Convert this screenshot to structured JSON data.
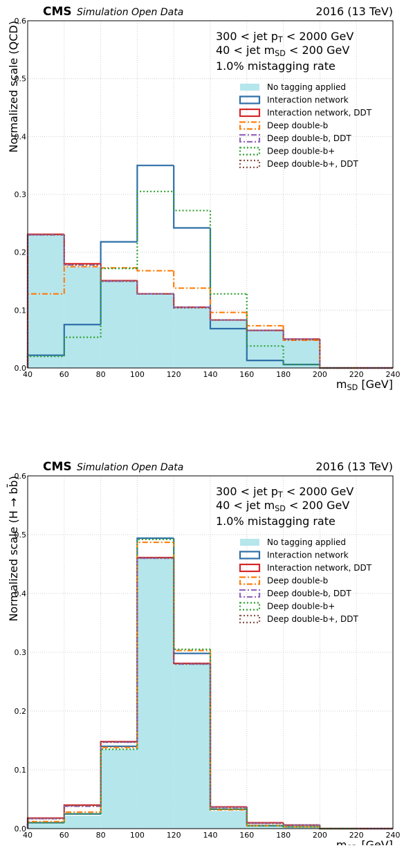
{
  "chart_data": [
    {
      "type": "histogram",
      "cms": "CMS",
      "status": "Simulation Open Data",
      "lumi": "2016 (13 TeV)",
      "annotations": [
        {
          "text": "300 <  jet p",
          "sub": "T",
          "after": "  < 2000 GeV"
        },
        {
          "text": "40 <  jet m",
          "sub": "SD",
          "after": "  < 200 GeV"
        },
        {
          "text": "1.0% mistagging rate"
        }
      ],
      "x_label": {
        "text": "m",
        "sub": "SD",
        "after": " [GeV]"
      },
      "y_label": "Normalized scale (QCD)",
      "bins": [
        40,
        60,
        80,
        100,
        120,
        140,
        160,
        180,
        200,
        220,
        240
      ],
      "xlim": [
        40,
        240
      ],
      "xticks": [
        40,
        60,
        80,
        100,
        120,
        140,
        160,
        180,
        200,
        220,
        240
      ],
      "ylim": [
        0,
        0.6
      ],
      "yticks": [
        {
          "value": 0,
          "label": "0.0"
        },
        0.1,
        0.2,
        0.3,
        0.4,
        0.5,
        0.6
      ],
      "grid": true,
      "legend": "upper right",
      "series": [
        {
          "name": "No tagging applied",
          "color": "#b5e6ec",
          "fill": true,
          "values": [
            0.23,
            0.175,
            0.15,
            0.128,
            0.105,
            0.083,
            0.065,
            0.05,
            0,
            0
          ]
        },
        {
          "name": "Interaction network",
          "color": "#2e6fa8",
          "linestyle": "solid",
          "values": [
            0.022,
            0.075,
            0.218,
            0.35,
            0.242,
            0.068,
            0.013,
            0.006,
            0,
            0
          ]
        },
        {
          "name": "Interaction network, DDT",
          "color": "#d62728",
          "linestyle": "solid",
          "values": [
            0.231,
            0.18,
            0.151,
            0.128,
            0.105,
            0.083,
            0.065,
            0.05,
            0,
            0
          ]
        },
        {
          "name": "Deep double-b",
          "color": "#ff7f0e",
          "linestyle": "dashdot",
          "values": [
            0.128,
            0.175,
            0.173,
            0.168,
            0.138,
            0.096,
            0.073,
            0.048,
            0,
            0
          ]
        },
        {
          "name": "Deep double-b, DDT",
          "color": "#9467bd",
          "linestyle": "dashdot",
          "values": [
            0.23,
            0.178,
            0.15,
            0.128,
            0.105,
            0.083,
            0.065,
            0.05,
            0,
            0
          ]
        },
        {
          "name": "Deep double-b+",
          "color": "#2ca02c",
          "linestyle": "dotted",
          "values": [
            0.02,
            0.053,
            0.172,
            0.305,
            0.272,
            0.128,
            0.038,
            0.006,
            0,
            0
          ]
        },
        {
          "name": "Deep double-b+, DDT",
          "color": "#8c564b",
          "linestyle": "dotted",
          "values": [
            0.23,
            0.178,
            0.15,
            0.128,
            0.104,
            0.083,
            0.065,
            0.049,
            0,
            0
          ]
        }
      ]
    },
    {
      "type": "histogram",
      "cms": "CMS",
      "status": "Simulation Open Data",
      "lumi": "2016 (13 TeV)",
      "annotations": [
        {
          "text": "300 <  jet p",
          "sub": "T",
          "after": "  < 2000 GeV"
        },
        {
          "text": "40 <  jet m",
          "sub": "SD",
          "after": "  < 200 GeV"
        },
        {
          "text": "1.0% mistagging rate"
        }
      ],
      "x_label": {
        "text": "m",
        "sub": "SD",
        "after": " [GeV]"
      },
      "y_label": "Normalized scale (H → bb̄)",
      "bins": [
        40,
        60,
        80,
        100,
        120,
        140,
        160,
        180,
        200,
        220,
        240
      ],
      "xlim": [
        40,
        240
      ],
      "xticks": [
        40,
        60,
        80,
        100,
        120,
        140,
        160,
        180,
        200,
        220,
        240
      ],
      "ylim": [
        0,
        0.6
      ],
      "yticks": [
        {
          "value": 0,
          "label": "0.0"
        },
        0.1,
        0.2,
        0.3,
        0.4,
        0.5,
        0.6
      ],
      "grid": true,
      "legend": "upper right",
      "series": [
        {
          "name": "No tagging applied",
          "color": "#b5e6ec",
          "fill": true,
          "values": [
            0.008,
            0.022,
            0.135,
            0.46,
            0.28,
            0.03,
            0.005,
            0.002,
            0,
            0
          ]
        },
        {
          "name": "Interaction network",
          "color": "#2e6fa8",
          "linestyle": "solid",
          "values": [
            0.01,
            0.025,
            0.14,
            0.494,
            0.298,
            0.033,
            0.005,
            0.003,
            0,
            0
          ]
        },
        {
          "name": "Interaction network, DDT",
          "color": "#d62728",
          "linestyle": "solid",
          "values": [
            0.018,
            0.04,
            0.148,
            0.461,
            0.281,
            0.037,
            0.01,
            0.006,
            0,
            0
          ]
        },
        {
          "name": "Deep double-b",
          "color": "#ff7f0e",
          "linestyle": "dashdot",
          "values": [
            0.012,
            0.028,
            0.138,
            0.487,
            0.303,
            0.032,
            0.005,
            0.003,
            0,
            0
          ]
        },
        {
          "name": "Deep double-b, DDT",
          "color": "#9467bd",
          "linestyle": "dashdot",
          "values": [
            0.017,
            0.038,
            0.147,
            0.46,
            0.28,
            0.036,
            0.009,
            0.006,
            0,
            0
          ]
        },
        {
          "name": "Deep double-b+",
          "color": "#2ca02c",
          "linestyle": "dotted",
          "values": [
            0.01,
            0.025,
            0.135,
            0.492,
            0.305,
            0.033,
            0.005,
            0.003,
            0,
            0
          ]
        },
        {
          "name": "Deep double-b+, DDT",
          "color": "#8c564b",
          "linestyle": "dotted",
          "values": [
            0.017,
            0.039,
            0.147,
            0.46,
            0.28,
            0.036,
            0.009,
            0.006,
            0,
            0
          ]
        }
      ]
    }
  ]
}
